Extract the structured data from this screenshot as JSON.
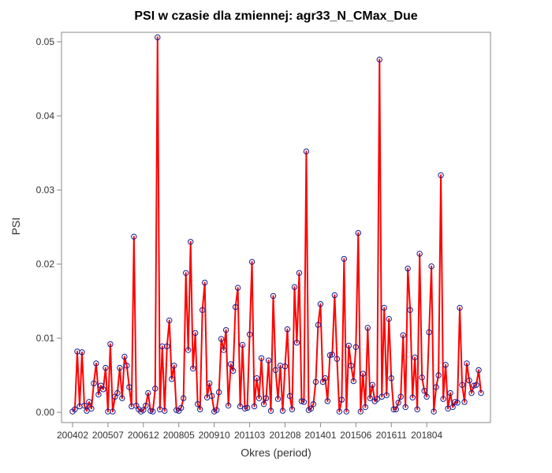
{
  "chart_data": {
    "type": "line",
    "title": "PSI w czasie dla zmiennej: agr33_N_CMax_Due",
    "xlabel": "Okres (period)",
    "ylabel": "PSI",
    "x_tick_labels": [
      "200402",
      "200507",
      "200612",
      "200805",
      "200910",
      "201103",
      "201208",
      "201401",
      "201506",
      "201611",
      "201804"
    ],
    "y_tick_labels": [
      "0.00",
      "0.01",
      "0.02",
      "0.03",
      "0.04",
      "0.05"
    ],
    "ylim": [
      0,
      0.053
    ],
    "grid": false,
    "line_color": "#ff0000",
    "marker_color": "#1a1a8c",
    "values": [
      0.0001,
      0.0004,
      0.0082,
      0.0008,
      0.0081,
      0.0009,
      0.0002,
      0.0014,
      0.0005,
      0.0039,
      0.0066,
      0.0024,
      0.0036,
      0.0031,
      0.006,
      0.0001,
      0.0092,
      0.0001,
      0.0021,
      0.0026,
      0.006,
      0.0019,
      0.0075,
      0.0063,
      0.0034,
      0.0008,
      0.0237,
      0.0009,
      0.0004,
      0.0001,
      0.0003,
      0.0009,
      0.0026,
      0.0002,
      0.0001,
      0.0032,
      0.0506,
      0.0004,
      0.0089,
      0.0002,
      0.0089,
      0.0124,
      0.0045,
      0.0063,
      0.0003,
      0.0002,
      0.0006,
      0.0019,
      0.0188,
      0.0084,
      0.023,
      0.0059,
      0.0107,
      0.0011,
      0.0004,
      0.0138,
      0.0175,
      0.002,
      0.0039,
      0.0022,
      0.0001,
      0.0003,
      0.0027,
      0.0099,
      0.0084,
      0.0111,
      0.0009,
      0.0065,
      0.0056,
      0.0142,
      0.0168,
      0.0008,
      0.0091,
      0.0005,
      0.0006,
      0.0105,
      0.0203,
      0.0008,
      0.0046,
      0.0019,
      0.0073,
      0.0011,
      0.0019,
      0.007,
      0.0002,
      0.0157,
      0.0057,
      0.0018,
      0.0063,
      0.0002,
      0.0062,
      0.0112,
      0.0022,
      0.0004,
      0.0169,
      0.0094,
      0.0188,
      0.0015,
      0.0014,
      0.0352,
      0.0003,
      0.0005,
      0.0011,
      0.0041,
      0.0118,
      0.0146,
      0.0041,
      0.0046,
      0.0015,
      0.0077,
      0.0078,
      0.0158,
      0.0072,
      0.0001,
      0.0017,
      0.0207,
      0.0001,
      0.009,
      0.0063,
      0.0042,
      0.0088,
      0.0242,
      0.0001,
      0.0052,
      0.0007,
      0.0114,
      0.0019,
      0.0037,
      0.0015,
      0.0018,
      0.0476,
      0.0021,
      0.0141,
      0.0023,
      0.0126,
      0.0046,
      0.0004,
      0.0004,
      0.0013,
      0.0021,
      0.0104,
      0.0007,
      0.0194,
      0.0138,
      0.002,
      0.0074,
      0.0004,
      0.0214,
      0.0047,
      0.0029,
      0.0021,
      0.0108,
      0.0197,
      0.0001,
      0.0034,
      0.005,
      0.032,
      0.0018,
      0.0064,
      0.0005,
      0.0026,
      0.0007,
      0.0014,
      0.0013,
      0.0141,
      0.0037,
      0.0014,
      0.0066,
      0.0043,
      0.0026,
      0.0036,
      0.0037,
      0.0057,
      0.0026
    ]
  }
}
